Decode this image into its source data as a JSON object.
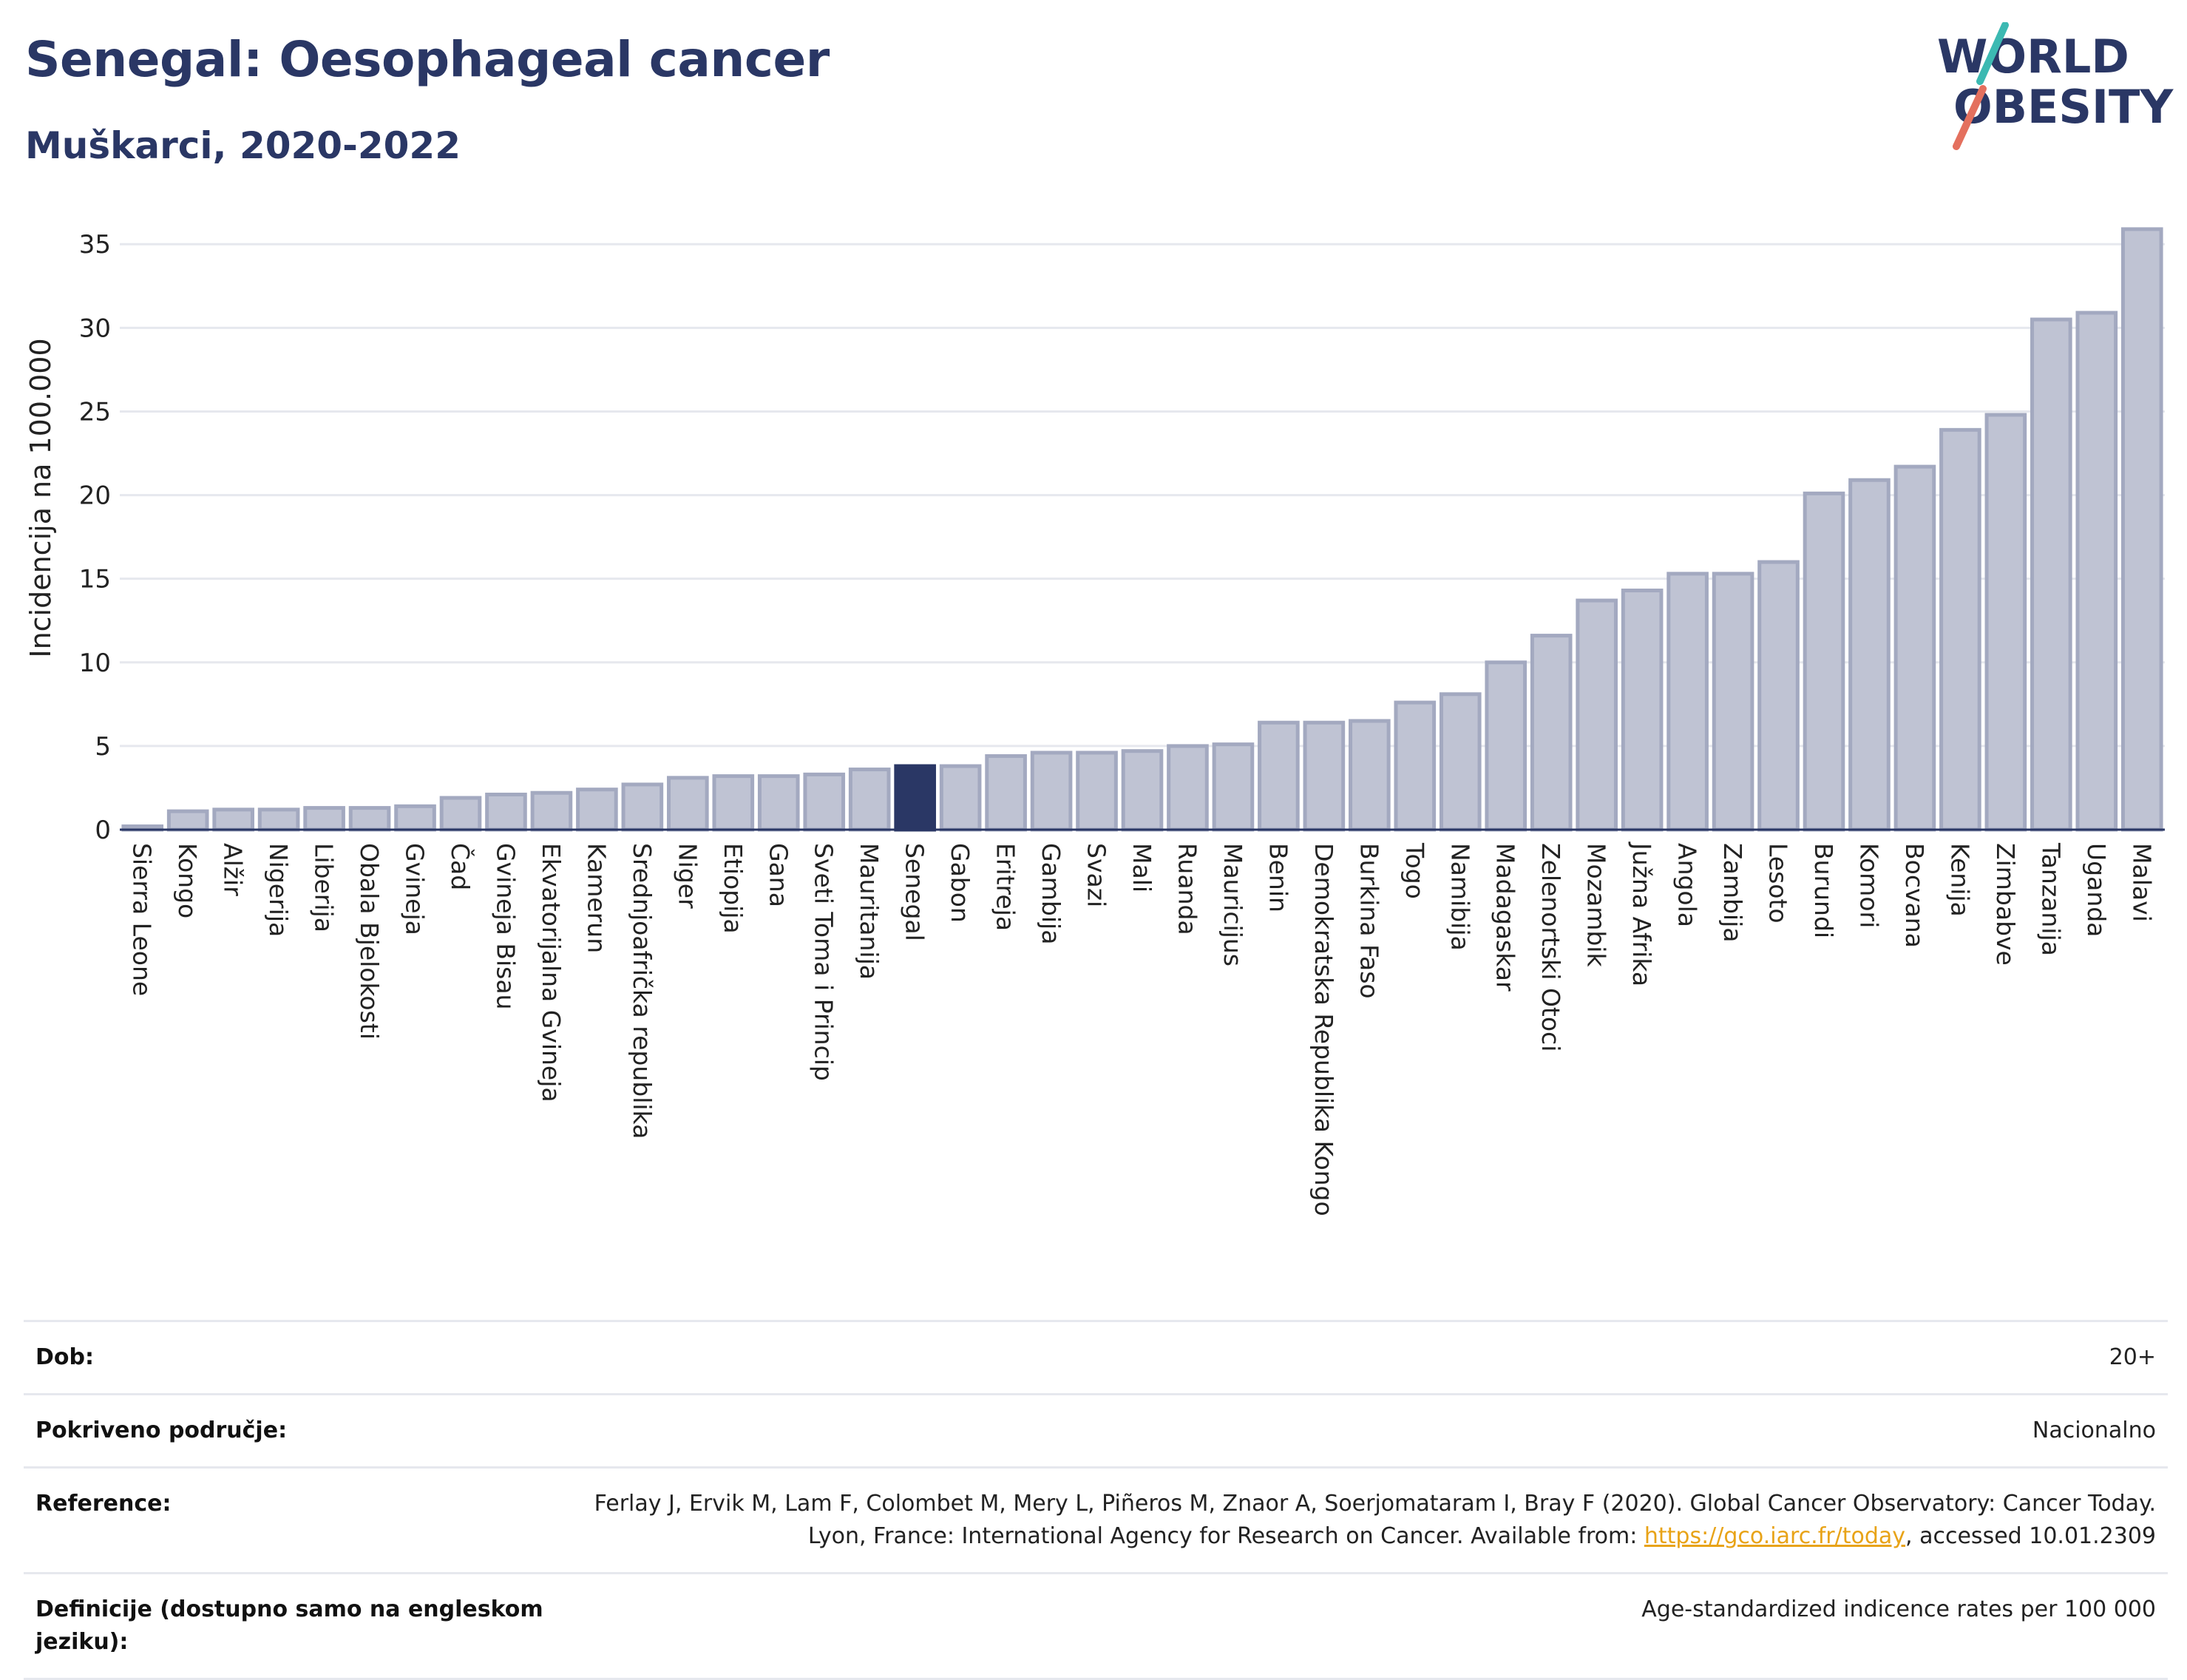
{
  "header": {
    "title": "Senegal: Oesophageal cancer",
    "subtitle": "Muškarci, 2020-2022"
  },
  "logo": {
    "line1": "WORLD",
    "line2": "OBESITY",
    "colors": {
      "text": "#2a3765",
      "accent1": "#3cb9b2",
      "accent2": "#e4705e"
    }
  },
  "colors": {
    "bar": "#bfc3d3",
    "bar_stroke": "#a3a9c0",
    "highlight": "#2a3765",
    "grid": "#e6e8ee"
  },
  "chart_data": {
    "type": "bar",
    "ylabel": "Incidencija na 100.000",
    "ylim": [
      0,
      37
    ],
    "yticks": [
      0,
      5,
      10,
      15,
      20,
      25,
      30,
      35
    ],
    "highlight": "Senegal",
    "grid": true,
    "categories": [
      "Sierra Leone",
      "Kongo",
      "Alžir",
      "Nigerija",
      "Liberija",
      "Obala Bjelokosti",
      "Gvineja",
      "Čad",
      "Gvineja Bisau",
      "Ekvatorijalna Gvineja",
      "Kamerun",
      "Srednjoafrička republika",
      "Niger",
      "Etiopija",
      "Gana",
      "Sveti Toma i Princip",
      "Mauritanija",
      "Senegal",
      "Gabon",
      "Eritreja",
      "Gambija",
      "Svazi",
      "Mali",
      "Ruanda",
      "Mauricijus",
      "Benin",
      "Demokratska Republika Kongo",
      "Burkina Faso",
      "Togo",
      "Namibija",
      "Madagaskar",
      "Zelenortski Otoci",
      "Mozambik",
      "Južna Afrika",
      "Angola",
      "Zambija",
      "Lesoto",
      "Burundi",
      "Komori",
      "Bocvana",
      "Kenija",
      "Zimbabve",
      "Tanzanija",
      "Uganda",
      "Malavi"
    ],
    "values": [
      0.2,
      1.1,
      1.2,
      1.2,
      1.3,
      1.3,
      1.4,
      1.9,
      2.1,
      2.2,
      2.4,
      2.7,
      3.1,
      3.2,
      3.2,
      3.3,
      3.6,
      3.8,
      3.8,
      4.4,
      4.6,
      4.6,
      4.7,
      5.0,
      5.1,
      6.4,
      6.4,
      6.5,
      7.6,
      8.1,
      10.0,
      11.6,
      13.7,
      14.3,
      15.3,
      15.3,
      16.0,
      20.1,
      20.9,
      21.7,
      23.9,
      24.8,
      30.5,
      30.9,
      35.9
    ]
  },
  "meta": [
    {
      "key": "Dob:",
      "value": "20+"
    },
    {
      "key": "Pokriveno područje:",
      "value": "Nacionalno"
    },
    {
      "key": "Reference:",
      "value_pre": "Ferlay J, Ervik M, Lam F, Colombet M, Mery L, Piñeros M, Znaor A, Soerjomataram I, Bray F (2020). Global Cancer Observatory: Cancer Today. Lyon, France: International Agency for Research on Cancer. Available from: ",
      "link": "https://gco.iarc.fr/today",
      "value_post": ", accessed 10.01.2309"
    },
    {
      "key": "Definicije (dostupno samo na engleskom jeziku):",
      "value": "Age-standardized indicence rates per 100 000"
    }
  ]
}
